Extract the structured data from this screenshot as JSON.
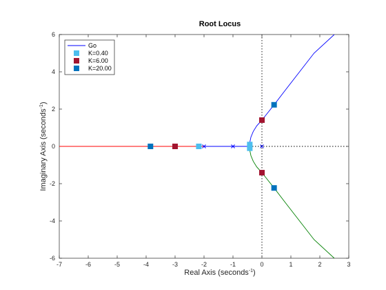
{
  "chart_data": {
    "type": "line",
    "title": "Root Locus",
    "xlabel": "Real Axis (seconds",
    "ylabel": "Imaginary Axis (seconds",
    "label_exponent": "-1",
    "label_close": ")",
    "xlim": [
      -7,
      3
    ],
    "ylim": [
      -6,
      6
    ],
    "xticks": [
      "-7",
      "-6",
      "-5",
      "-4",
      "-3",
      "-2",
      "-1",
      "0",
      "1",
      "2",
      "3"
    ],
    "yticks": [
      "-6",
      "-4",
      "-2",
      "0",
      "2",
      "4",
      "6"
    ],
    "grid": false,
    "legend_position": "top-left",
    "open_loop_poles": [
      [
        0,
        0
      ],
      [
        -1,
        0
      ],
      [
        -2,
        0
      ]
    ],
    "series": [
      {
        "name": "Go",
        "color": "#0000ff",
        "points": [
          [
            -7,
            0
          ],
          [
            -2,
            0
          ],
          [
            -1,
            0
          ],
          [
            -0.42,
            0
          ],
          [
            -0.42,
            0.2
          ],
          [
            -0.38,
            0.5
          ],
          [
            -0.3,
            0.8
          ],
          [
            -0.18,
            1.1
          ],
          [
            0,
            1.41
          ],
          [
            0.2,
            1.8
          ],
          [
            0.42,
            2.23
          ],
          [
            0.8,
            3.0
          ],
          [
            1.3,
            4.0
          ],
          [
            1.8,
            5.0
          ],
          [
            2.5,
            6.0
          ]
        ]
      },
      {
        "color": "#008000",
        "points": [
          [
            -0.42,
            0
          ],
          [
            -0.42,
            -0.2
          ],
          [
            -0.38,
            -0.5
          ],
          [
            -0.3,
            -0.8
          ],
          [
            -0.18,
            -1.1
          ],
          [
            0,
            -1.41
          ],
          [
            0.2,
            -1.8
          ],
          [
            0.42,
            -2.23
          ],
          [
            0.8,
            -3.0
          ],
          [
            1.3,
            -4.0
          ],
          [
            1.8,
            -5.0
          ],
          [
            2.5,
            -6.0
          ]
        ]
      },
      {
        "color": "#ff0000",
        "points": [
          [
            -7,
            0
          ],
          [
            -2,
            0
          ]
        ]
      }
    ],
    "gain_markers": [
      {
        "name": "K=0.40",
        "color": "#4dbeee",
        "points": [
          [
            -2.18,
            0
          ],
          [
            -0.42,
            0.1
          ],
          [
            -0.42,
            -0.1
          ]
        ]
      },
      {
        "name": "K=6.00",
        "color": "#a2142f",
        "points": [
          [
            -3.0,
            0
          ],
          [
            0,
            1.41
          ],
          [
            0,
            -1.41
          ]
        ]
      },
      {
        "name": "K=20.00",
        "color": "#0072bd",
        "points": [
          [
            -3.85,
            0
          ],
          [
            0.42,
            2.23
          ],
          [
            0.42,
            -2.23
          ]
        ]
      }
    ]
  }
}
